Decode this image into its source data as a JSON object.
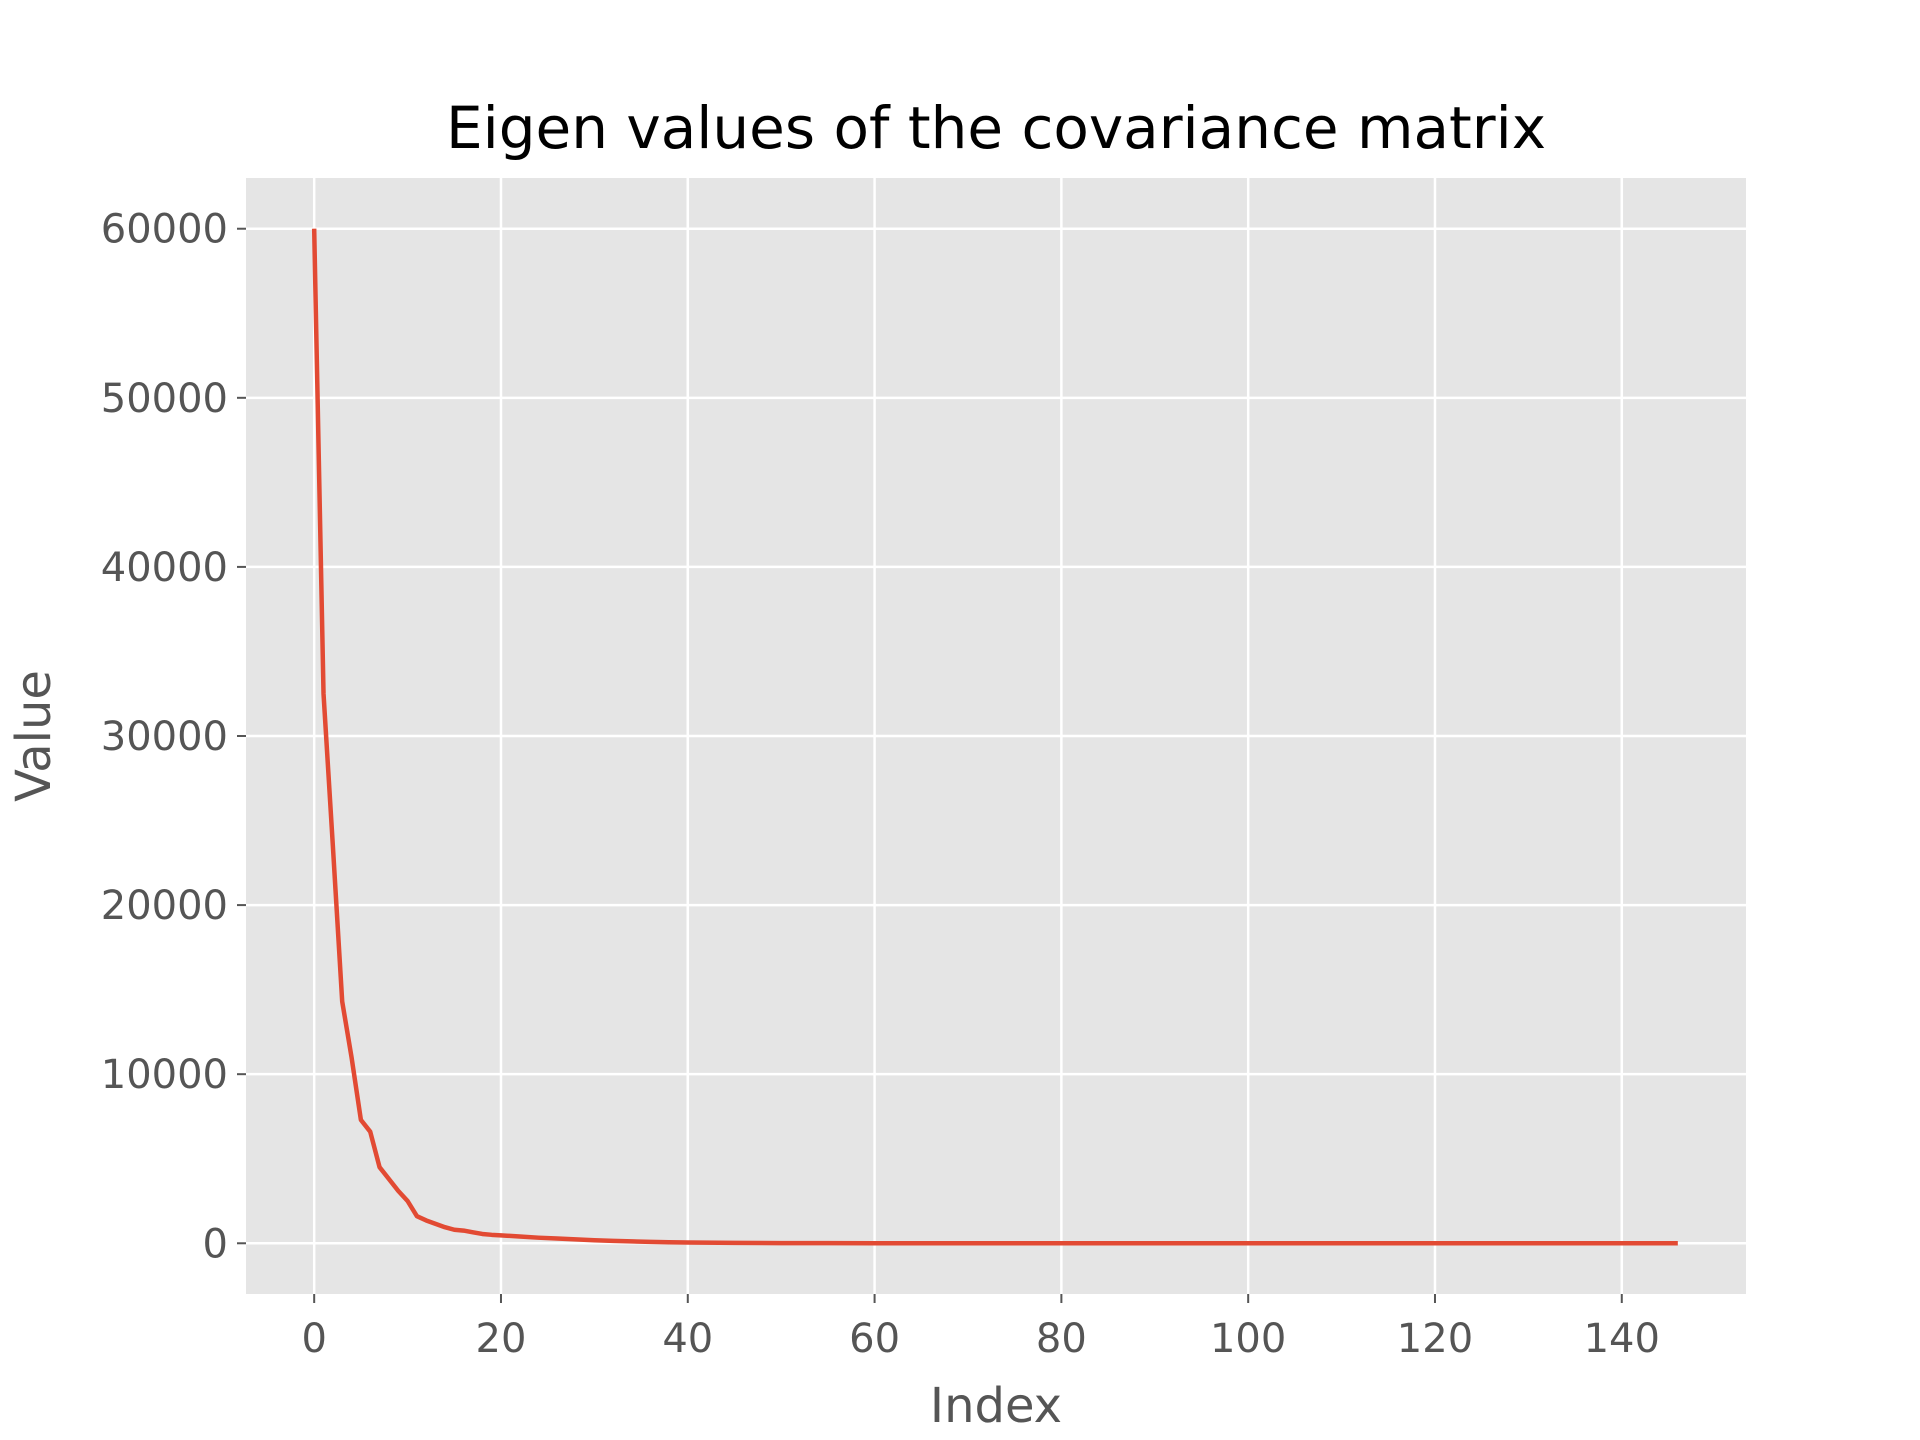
{
  "chart_data": {
    "type": "line",
    "title": "Eigen values of the covariance matrix",
    "xlabel": "Index",
    "ylabel": "Value",
    "xlim": [
      -7.3,
      153.3
    ],
    "ylim": [
      -3000,
      63000
    ],
    "x_ticks": [
      0,
      20,
      40,
      60,
      80,
      100,
      120,
      140
    ],
    "y_ticks": [
      0,
      10000,
      20000,
      30000,
      40000,
      50000,
      60000
    ],
    "grid": true,
    "series": [
      {
        "color": "#E24A33",
        "x": [
          0,
          1,
          2,
          3,
          4,
          5,
          6,
          7,
          8,
          9,
          10,
          11,
          12,
          13,
          14,
          15,
          16,
          17,
          18,
          19,
          20,
          22,
          24,
          26,
          28,
          30,
          32,
          34,
          36,
          38,
          40,
          45,
          50,
          55,
          60,
          70,
          80,
          90,
          100,
          110,
          120,
          130,
          140,
          146
        ],
        "y": [
          60000,
          32500,
          23500,
          14300,
          11000,
          7300,
          6600,
          4500,
          3800,
          3100,
          2500,
          1600,
          1350,
          1150,
          950,
          800,
          750,
          650,
          550,
          500,
          470,
          400,
          330,
          280,
          230,
          180,
          140,
          110,
          85,
          60,
          45,
          20,
          12,
          8,
          5,
          3,
          2,
          1,
          1,
          0,
          0,
          0,
          0,
          0
        ]
      }
    ]
  },
  "colors": {
    "background": "#ffffff",
    "plot_area": "#E5E5E5",
    "grid": "#ffffff",
    "tick_mark": "#555555"
  }
}
